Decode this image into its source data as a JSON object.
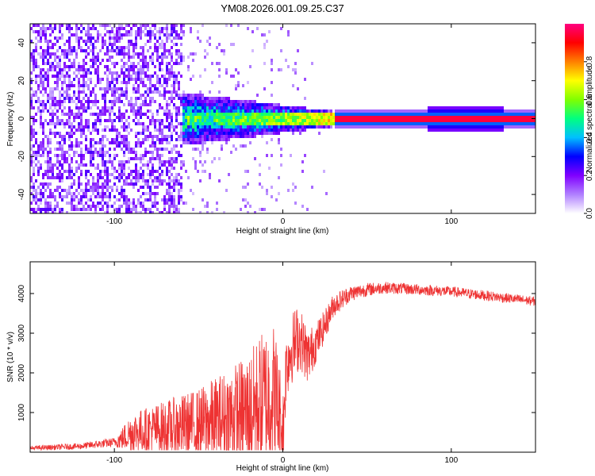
{
  "title": "YM08.2026.001.09.25.C37",
  "chart_data": [
    {
      "type": "heatmap",
      "name": "spectrogram",
      "xlabel": "Height of straight line (km)",
      "ylabel": "Frequency (Hz)",
      "xlim": [
        -150,
        150
      ],
      "ylim": [
        -50,
        50
      ],
      "xticks": [
        -100,
        0,
        100
      ],
      "xtick_labels": [
        "-100",
        "0",
        "100"
      ],
      "yticks": [
        -40,
        -20,
        0,
        20,
        40
      ],
      "ytick_labels": [
        "-40",
        "-20",
        "0",
        "20",
        "40"
      ],
      "colorbar": {
        "label": "Normalized spectral amplitude",
        "range": [
          0,
          1
        ],
        "ticks": [
          0.0,
          0.2,
          0.4,
          0.6,
          0.8
        ],
        "tick_labels": [
          "0.0",
          "0.2",
          "0.4",
          "0.6",
          "0.8"
        ],
        "colormap": [
          "#ffffff",
          "#b080ff",
          "#8000ff",
          "#0000ff",
          "#00c0ff",
          "#00ff80",
          "#80ff00",
          "#ffff00",
          "#ff8000",
          "#ff0000",
          "#ff0080"
        ]
      },
      "description_regions": {
        "noise_region_km": [
          -150,
          -60
        ],
        "transition_region_km": [
          -60,
          30
        ],
        "coherent_line_km": [
          30,
          150
        ],
        "coherent_line_frequency_hz": 0
      }
    },
    {
      "type": "line",
      "name": "snr",
      "xlabel": "Height of straight line (km)",
      "ylabel": "SNR (10 * v/v)",
      "xlim": [
        -150,
        150
      ],
      "ylim": [
        0,
        4800
      ],
      "xticks": [
        -100,
        0,
        100
      ],
      "xtick_labels": [
        "-100",
        "0",
        "100"
      ],
      "yticks": [
        1000,
        2000,
        3000,
        4000
      ],
      "ytick_labels": [
        "1000",
        "2000",
        "3000",
        "4000"
      ],
      "series": [
        {
          "name": "SNR",
          "color": "#ee3333",
          "x": [
            -150,
            -120,
            -100,
            -95,
            -90,
            -80,
            -70,
            -60,
            -50,
            -40,
            -30,
            -20,
            -15,
            -10,
            -5,
            -2,
            0,
            2,
            5,
            8,
            10,
            15,
            20,
            25,
            30,
            40,
            50,
            60,
            80,
            100,
            120,
            140,
            150
          ],
          "y": [
            100,
            150,
            250,
            350,
            500,
            550,
            600,
            650,
            700,
            800,
            900,
            1000,
            1200,
            1300,
            1500,
            900,
            400,
            2200,
            2600,
            2800,
            2900,
            2400,
            2800,
            3200,
            3700,
            4000,
            4100,
            4150,
            4100,
            4050,
            3950,
            3850,
            3800
          ],
          "noise_amplitude": [
            60,
            80,
            120,
            300,
            500,
            600,
            700,
            800,
            900,
            1100,
            1300,
            1500,
            1700,
            1900,
            1800,
            1500,
            1200,
            900,
            900,
            900,
            800,
            700,
            500,
            400,
            300,
            200,
            170,
            150,
            140,
            130,
            130,
            120,
            120
          ]
        }
      ]
    }
  ]
}
